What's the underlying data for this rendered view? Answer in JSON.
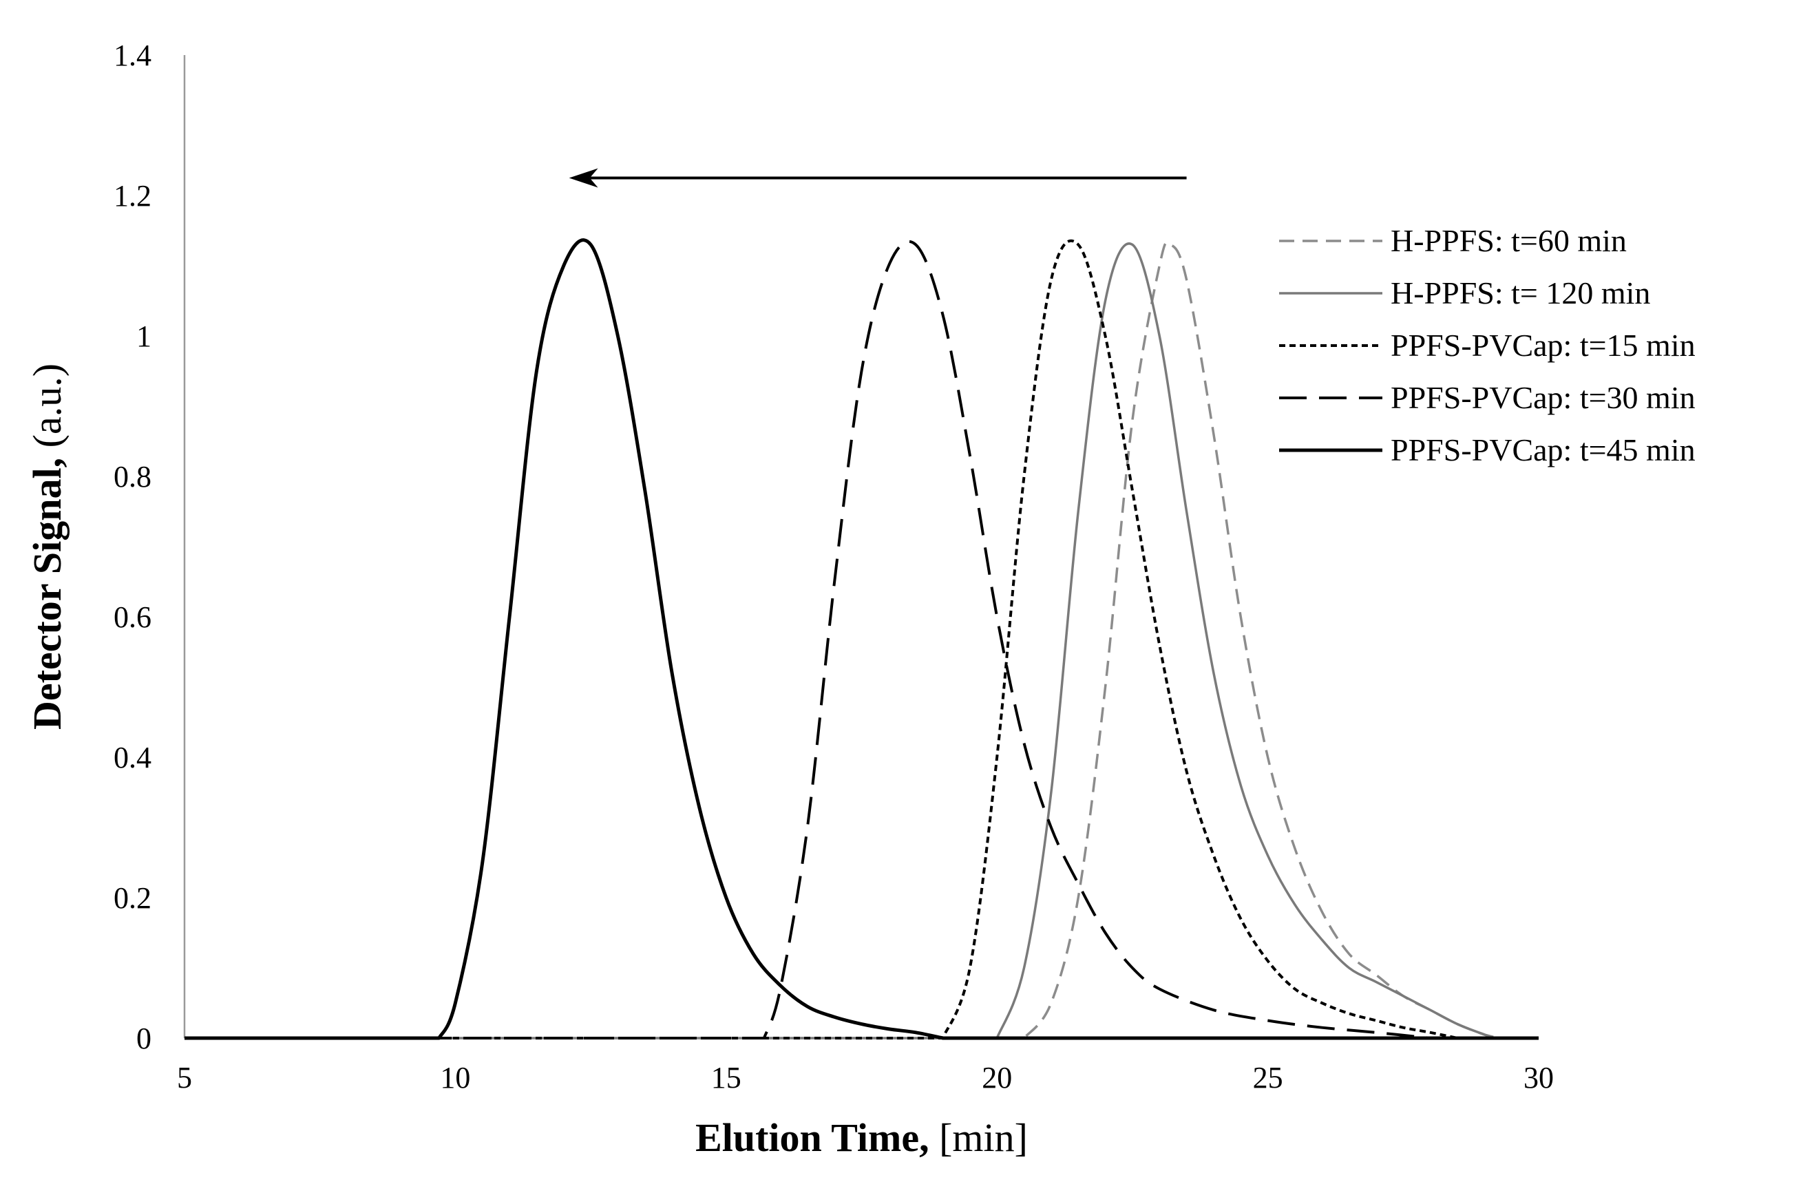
{
  "chart_data": {
    "type": "line",
    "title": "",
    "xlabel": {
      "bold": "Elution Time,",
      "unit": "[min]"
    },
    "ylabel": {
      "bold": "Detector Signal,",
      "unit": "(a.u.)"
    },
    "xlim": [
      5,
      30
    ],
    "ylim": [
      0,
      1.4
    ],
    "xticks": [
      5,
      10,
      15,
      20,
      25,
      30
    ],
    "xtick_labels": [
      "5",
      "10",
      "15",
      "20",
      "25",
      "30"
    ],
    "yticks": [
      0,
      0.2,
      0.4,
      0.6,
      0.8,
      1.0,
      1.2,
      1.4
    ],
    "ytick_labels": [
      "0",
      "0.2",
      "0.4",
      "0.6",
      "0.8",
      "1",
      "1.2",
      "1.4"
    ],
    "grid": false,
    "legend_position": "right",
    "annotation_arrow": {
      "from": [
        23.5,
        1.225
      ],
      "to": [
        12.1,
        1.225
      ],
      "direction": "left"
    },
    "series": [
      {
        "name": "H-PPFS: t=60 min",
        "color": "#8c8c8c",
        "dash": "dashed",
        "x": [
          20.5,
          21.0,
          21.5,
          22.0,
          22.5,
          23.0,
          23.2,
          23.5,
          24.0,
          24.5,
          25.0,
          25.5,
          26.0,
          26.5,
          27.0,
          27.5,
          28.0,
          28.5,
          29.0,
          29.3
        ],
        "y": [
          0.0,
          0.05,
          0.2,
          0.5,
          0.88,
          1.1,
          1.13,
          1.08,
          0.86,
          0.6,
          0.4,
          0.27,
          0.18,
          0.12,
          0.09,
          0.06,
          0.04,
          0.02,
          0.005,
          0.0
        ]
      },
      {
        "name": "H-PPFS: t= 120 min",
        "color": "#7a7a7a",
        "dash": "solid",
        "x": [
          20.0,
          20.5,
          21.0,
          21.5,
          22.0,
          22.5,
          23.0,
          23.5,
          24.0,
          24.5,
          25.0,
          25.5,
          26.0,
          26.5,
          27.0,
          27.5,
          28.0,
          28.5,
          29.0,
          29.2
        ],
        "y": [
          0.0,
          0.1,
          0.35,
          0.75,
          1.05,
          1.13,
          1.0,
          0.75,
          0.52,
          0.36,
          0.26,
          0.19,
          0.14,
          0.1,
          0.08,
          0.06,
          0.04,
          0.02,
          0.005,
          0.0
        ]
      },
      {
        "name": "PPFS-PVCap: t=15 min",
        "color": "#000000",
        "dash": "dotted",
        "x": [
          19.0,
          19.5,
          20.0,
          20.5,
          21.0,
          21.5,
          22.0,
          22.5,
          23.0,
          23.5,
          24.0,
          24.5,
          25.0,
          25.5,
          26.0,
          26.5,
          27.0,
          27.5,
          28.0,
          28.5
        ],
        "y": [
          0.0,
          0.1,
          0.4,
          0.8,
          1.08,
          1.13,
          1.0,
          0.78,
          0.56,
          0.38,
          0.26,
          0.17,
          0.11,
          0.07,
          0.05,
          0.035,
          0.025,
          0.015,
          0.008,
          0.0
        ]
      },
      {
        "name": "PPFS-PVCap: t=30 min",
        "color": "#000000",
        "dash": "longdash",
        "x": [
          15.7,
          16.0,
          16.5,
          17.0,
          17.5,
          18.0,
          18.5,
          19.0,
          19.5,
          20.0,
          20.5,
          21.0,
          21.5,
          22.0,
          22.5,
          23.0,
          24.0,
          25.0,
          26.0,
          27.0,
          28.0
        ],
        "y": [
          0.0,
          0.07,
          0.3,
          0.65,
          0.95,
          1.1,
          1.13,
          1.03,
          0.83,
          0.6,
          0.42,
          0.3,
          0.22,
          0.15,
          0.1,
          0.07,
          0.04,
          0.025,
          0.015,
          0.008,
          0.0
        ]
      },
      {
        "name": "PPFS-PVCap: t=45 min",
        "color": "#000000",
        "dash": "solid",
        "x": [
          9.7,
          10.0,
          10.5,
          11.0,
          11.5,
          12.0,
          12.5,
          13.0,
          13.5,
          14.0,
          14.5,
          15.0,
          15.5,
          16.0,
          16.5,
          17.0,
          17.5,
          18.0,
          18.5,
          19.0
        ],
        "y": [
          0.0,
          0.05,
          0.25,
          0.6,
          0.95,
          1.1,
          1.13,
          1.0,
          0.78,
          0.52,
          0.33,
          0.2,
          0.12,
          0.075,
          0.045,
          0.03,
          0.02,
          0.013,
          0.008,
          0.0
        ]
      }
    ]
  }
}
